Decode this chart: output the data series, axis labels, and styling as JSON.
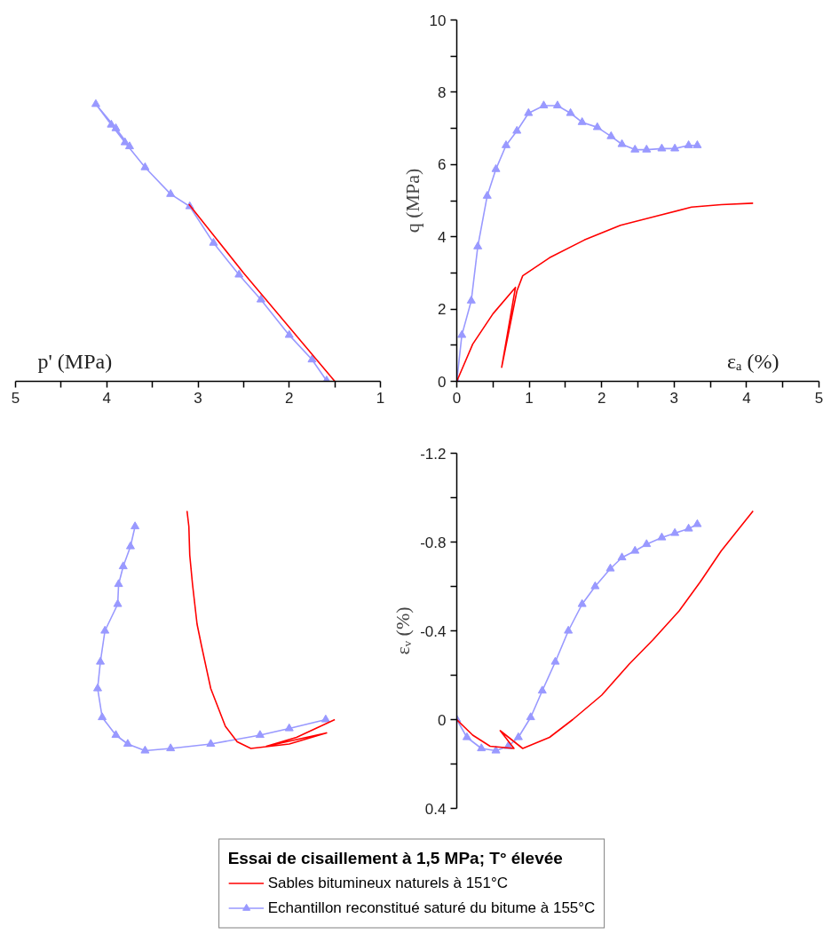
{
  "chart_data": [
    {
      "type": "line",
      "xlabel": "p' (MPa)",
      "xlim": [
        5,
        1
      ],
      "ylim": [
        0,
        10
      ],
      "tick_labels": "x",
      "xticks": [
        5,
        {
          "value": 4.5,
          "label": null
        },
        4,
        {
          "value": 3.5,
          "label": null
        },
        3,
        {
          "value": 2.5,
          "label": null
        },
        2,
        {
          "value": 1.5,
          "label": null
        },
        1
      ],
      "series": [
        {
          "color": "#ff0000",
          "marker": "none",
          "x": [
            1.5,
            1.75,
            2.0,
            2.5,
            2.8,
            3.1
          ],
          "values": [
            0,
            0.75,
            1.5,
            3.0,
            3.95,
            4.9
          ]
        },
        {
          "color": "#9999ff",
          "marker": "triangle",
          "x": [
            1.59,
            1.75,
            2.0,
            2.31,
            2.55,
            2.83,
            3.09,
            3.3,
            3.58,
            3.8,
            3.95,
            4.12,
            3.9,
            3.75
          ],
          "values": [
            0.02,
            0.6,
            1.28,
            2.26,
            2.95,
            3.83,
            4.84,
            5.18,
            5.92,
            6.61,
            7.1,
            7.67,
            7.0,
            6.5
          ]
        }
      ]
    },
    {
      "type": "line",
      "xlabel": "εₐ (%)",
      "ylabel": "q (MPa)",
      "xlim": [
        0,
        5
      ],
      "ylim": [
        0,
        10
      ],
      "xticks": [
        0,
        {
          "value": 0.5,
          "label": null
        },
        1,
        {
          "value": 1.5,
          "label": null
        },
        2,
        {
          "value": 2.5,
          "label": null
        },
        3,
        {
          "value": 3.5,
          "label": null
        },
        4,
        {
          "value": 4.5,
          "label": null
        },
        5
      ],
      "yticks": [
        0,
        {
          "value": 1,
          "label": null
        },
        2,
        {
          "value": 3,
          "label": null
        },
        4,
        {
          "value": 5,
          "label": null
        },
        6,
        {
          "value": 7,
          "label": null
        },
        8,
        {
          "value": 9,
          "label": null
        },
        10
      ],
      "series": [
        {
          "color": "#ff0000",
          "marker": "none",
          "x": [
            0,
            0.22,
            0.5,
            0.81,
            0.62,
            0.83,
            0.91,
            1.28,
            1.76,
            2.26,
            2.75,
            3.24,
            3.65,
            4.09
          ],
          "values": [
            0,
            1.03,
            1.87,
            2.6,
            0.39,
            2.5,
            2.92,
            3.42,
            3.91,
            4.32,
            4.57,
            4.82,
            4.89,
            4.93
          ]
        },
        {
          "color": "#9999ff",
          "marker": "triangle",
          "x": [
            0,
            0.07,
            0.2,
            0.29,
            0.42,
            0.54,
            0.68,
            0.83,
            0.99,
            1.2,
            1.39,
            1.57,
            1.73,
            1.94,
            2.13,
            2.28,
            2.46,
            2.62,
            2.83,
            3.01,
            3.2,
            3.32
          ],
          "values": [
            0,
            1.28,
            2.23,
            3.73,
            5.13,
            5.87,
            6.53,
            6.93,
            7.42,
            7.63,
            7.63,
            7.42,
            7.17,
            7.03,
            6.78,
            6.56,
            6.41,
            6.41,
            6.44,
            6.44,
            6.53,
            6.53
          ]
        }
      ]
    },
    {
      "type": "line",
      "xlim": [
        5,
        1
      ],
      "ylim": [
        0.4,
        -1.2
      ],
      "tick_labels": false,
      "series": [
        {
          "color": "#ff0000",
          "marker": "none",
          "x": [
            1.5,
            1.92,
            2.25,
            1.59,
            2.0,
            2.42,
            2.57,
            2.7,
            2.86,
            2.96,
            3.01,
            3.06,
            3.09,
            3.1,
            3.12
          ],
          "values": [
            0,
            0.08,
            0.12,
            0.06,
            0.11,
            0.13,
            0.1,
            0.03,
            -0.14,
            -0.33,
            -0.43,
            -0.61,
            -0.74,
            -0.87,
            -0.94
          ]
        },
        {
          "color": "#9999ff",
          "marker": "triangle",
          "x": [
            1.6,
            2.0,
            2.32,
            2.86,
            3.3,
            3.58,
            3.77,
            3.9,
            4.05,
            4.1,
            4.07,
            4.02,
            3.88,
            3.87,
            3.82,
            3.74,
            3.69
          ],
          "values": [
            0,
            0.04,
            0.07,
            0.11,
            0.13,
            0.14,
            0.11,
            0.07,
            -0.01,
            -0.14,
            -0.26,
            -0.4,
            -0.52,
            -0.61,
            -0.69,
            -0.78,
            -0.87
          ]
        }
      ]
    },
    {
      "type": "line",
      "ylabel": "εᵥ (%)",
      "xlim": [
        0,
        5
      ],
      "ylim": [
        0.4,
        -1.2
      ],
      "tick_labels": "y",
      "yticks": [
        -1.2,
        {
          "value": -1.0,
          "label": null
        },
        -0.8,
        {
          "value": -0.6,
          "label": null
        },
        -0.4,
        {
          "value": -0.2,
          "label": null
        },
        0,
        {
          "value": 0.2,
          "label": null
        },
        0.4
      ],
      "legend": "bottom",
      "legend_title": "Essai de cisaillement à 1,5 MPa; T° élevée",
      "series": [
        {
          "name": "Sables bitumineux naturels à 151°C",
          "color": "#ff0000",
          "marker": "none",
          "x": [
            0,
            0.22,
            0.46,
            0.79,
            0.6,
            0.91,
            1.28,
            1.6,
            2.0,
            2.38,
            2.71,
            3.07,
            3.36,
            3.65,
            4.09
          ],
          "values": [
            0,
            0.07,
            0.12,
            0.13,
            0.05,
            0.13,
            0.08,
            0.0,
            -0.11,
            -0.25,
            -0.36,
            -0.49,
            -0.62,
            -0.76,
            -0.94
          ]
        },
        {
          "name": "Echantillon reconstitué saturé du bitume à 155°C",
          "color": "#9999ff",
          "marker": "triangle",
          "x": [
            0,
            0.14,
            0.34,
            0.54,
            0.71,
            0.85,
            1.02,
            1.18,
            1.36,
            1.54,
            1.73,
            1.91,
            2.12,
            2.28,
            2.46,
            2.62,
            2.83,
            3.01,
            3.2,
            3.32
          ],
          "values": [
            0,
            0.08,
            0.13,
            0.14,
            0.12,
            0.08,
            -0.01,
            -0.13,
            -0.26,
            -0.4,
            -0.52,
            -0.6,
            -0.68,
            -0.73,
            -0.76,
            -0.79,
            -0.82,
            -0.84,
            -0.86,
            -0.88
          ]
        }
      ]
    }
  ]
}
